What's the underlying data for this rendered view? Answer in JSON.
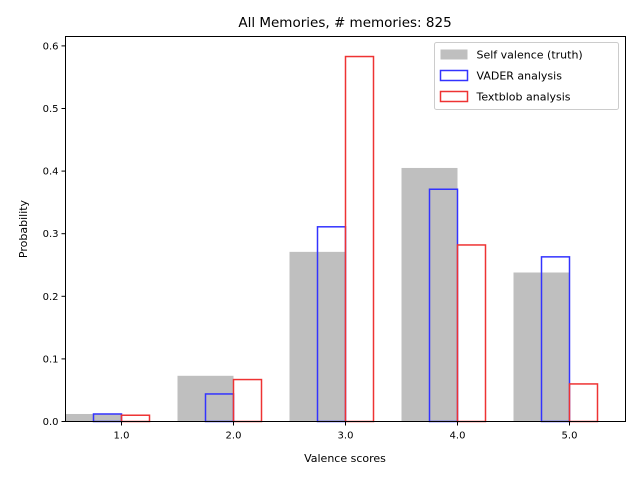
{
  "chart_data": {
    "type": "bar",
    "title": "All Memories, # memories: 825",
    "xlabel": "Valence scores",
    "ylabel": "Probability",
    "categories": [
      "1.0",
      "2.0",
      "3.0",
      "4.0",
      "5.0"
    ],
    "x": [
      1,
      2,
      3,
      4,
      5
    ],
    "xlim": [
      0.5,
      5.5
    ],
    "ylim": [
      0,
      0.615
    ],
    "yticks": [
      "0.0",
      "0.1",
      "0.2",
      "0.3",
      "0.4",
      "0.5",
      "0.6"
    ],
    "legend_position": "top-right",
    "grid": false,
    "series": [
      {
        "name": "Self valence (truth)",
        "style": "filled",
        "color": "#bfbfbf",
        "values": [
          0.012,
          0.073,
          0.271,
          0.405,
          0.238
        ]
      },
      {
        "name": "VADER analysis",
        "style": "outline",
        "color": "#3333ff",
        "values": [
          0.012,
          0.044,
          0.311,
          0.371,
          0.263
        ]
      },
      {
        "name": "Textblob analysis",
        "style": "outline",
        "color": "#ee3333",
        "values": [
          0.01,
          0.067,
          0.583,
          0.282,
          0.06
        ]
      }
    ]
  }
}
